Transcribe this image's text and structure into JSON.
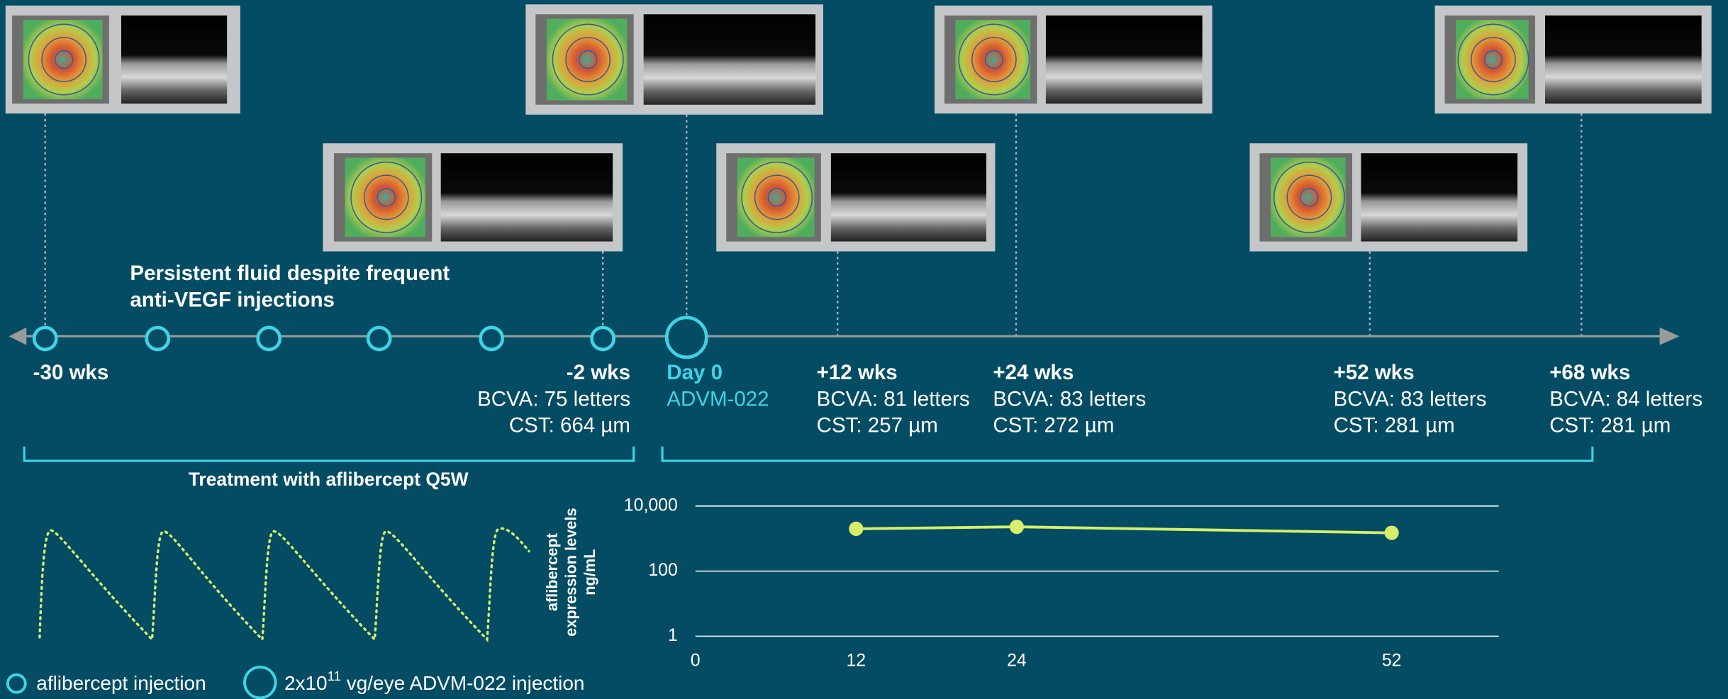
{
  "note": {
    "lines": [
      "Persistent fluid despite frequent",
      "anti-VEGF injections"
    ]
  },
  "timeline": {
    "events": [
      {
        "label": "-30 wks"
      },
      {
        "label": "-2 wks",
        "bcva": "BCVA: 75 letters",
        "cst": "CST: 664 µm"
      },
      {
        "label": "Day 0",
        "sub": "ADVM-022",
        "color": "#3fd3e6"
      },
      {
        "label": "+12 wks",
        "bcva": "BCVA: 81 letters",
        "cst": "CST: 257 µm"
      },
      {
        "label": "+24 wks",
        "bcva": "BCVA: 83 letters",
        "cst": "CST: 272 µm"
      },
      {
        "label": "+52 wks",
        "bcva": "BCVA: 83 letters",
        "cst": "CST: 281 µm"
      },
      {
        "label": "+68 wks",
        "bcva": "BCVA: 84 letters",
        "cst": "CST: 281 µm"
      }
    ],
    "treatment_label": "Treatment with aflibercept Q5W"
  },
  "legend": {
    "small": "aflibercept injection",
    "large": {
      "prefix": "2x10",
      "sup": "11",
      "suffix": " vg/eye ADVM-022 injection"
    }
  },
  "chart_data": {
    "type": "line",
    "ylabel": [
      "aflibercept",
      "expression levels",
      "ng/mL"
    ],
    "x": [
      12,
      24,
      52
    ],
    "values": [
      2000,
      2300,
      1500
    ],
    "color": "#d6ee6a",
    "xlim": [
      0,
      60
    ],
    "xticks": [
      0,
      12,
      24,
      52
    ],
    "ylim": [
      1,
      10000
    ],
    "yticks": [
      1,
      100,
      {
        "value": 10000,
        "label": "10,000"
      }
    ],
    "log_y": true,
    "grid": true
  }
}
